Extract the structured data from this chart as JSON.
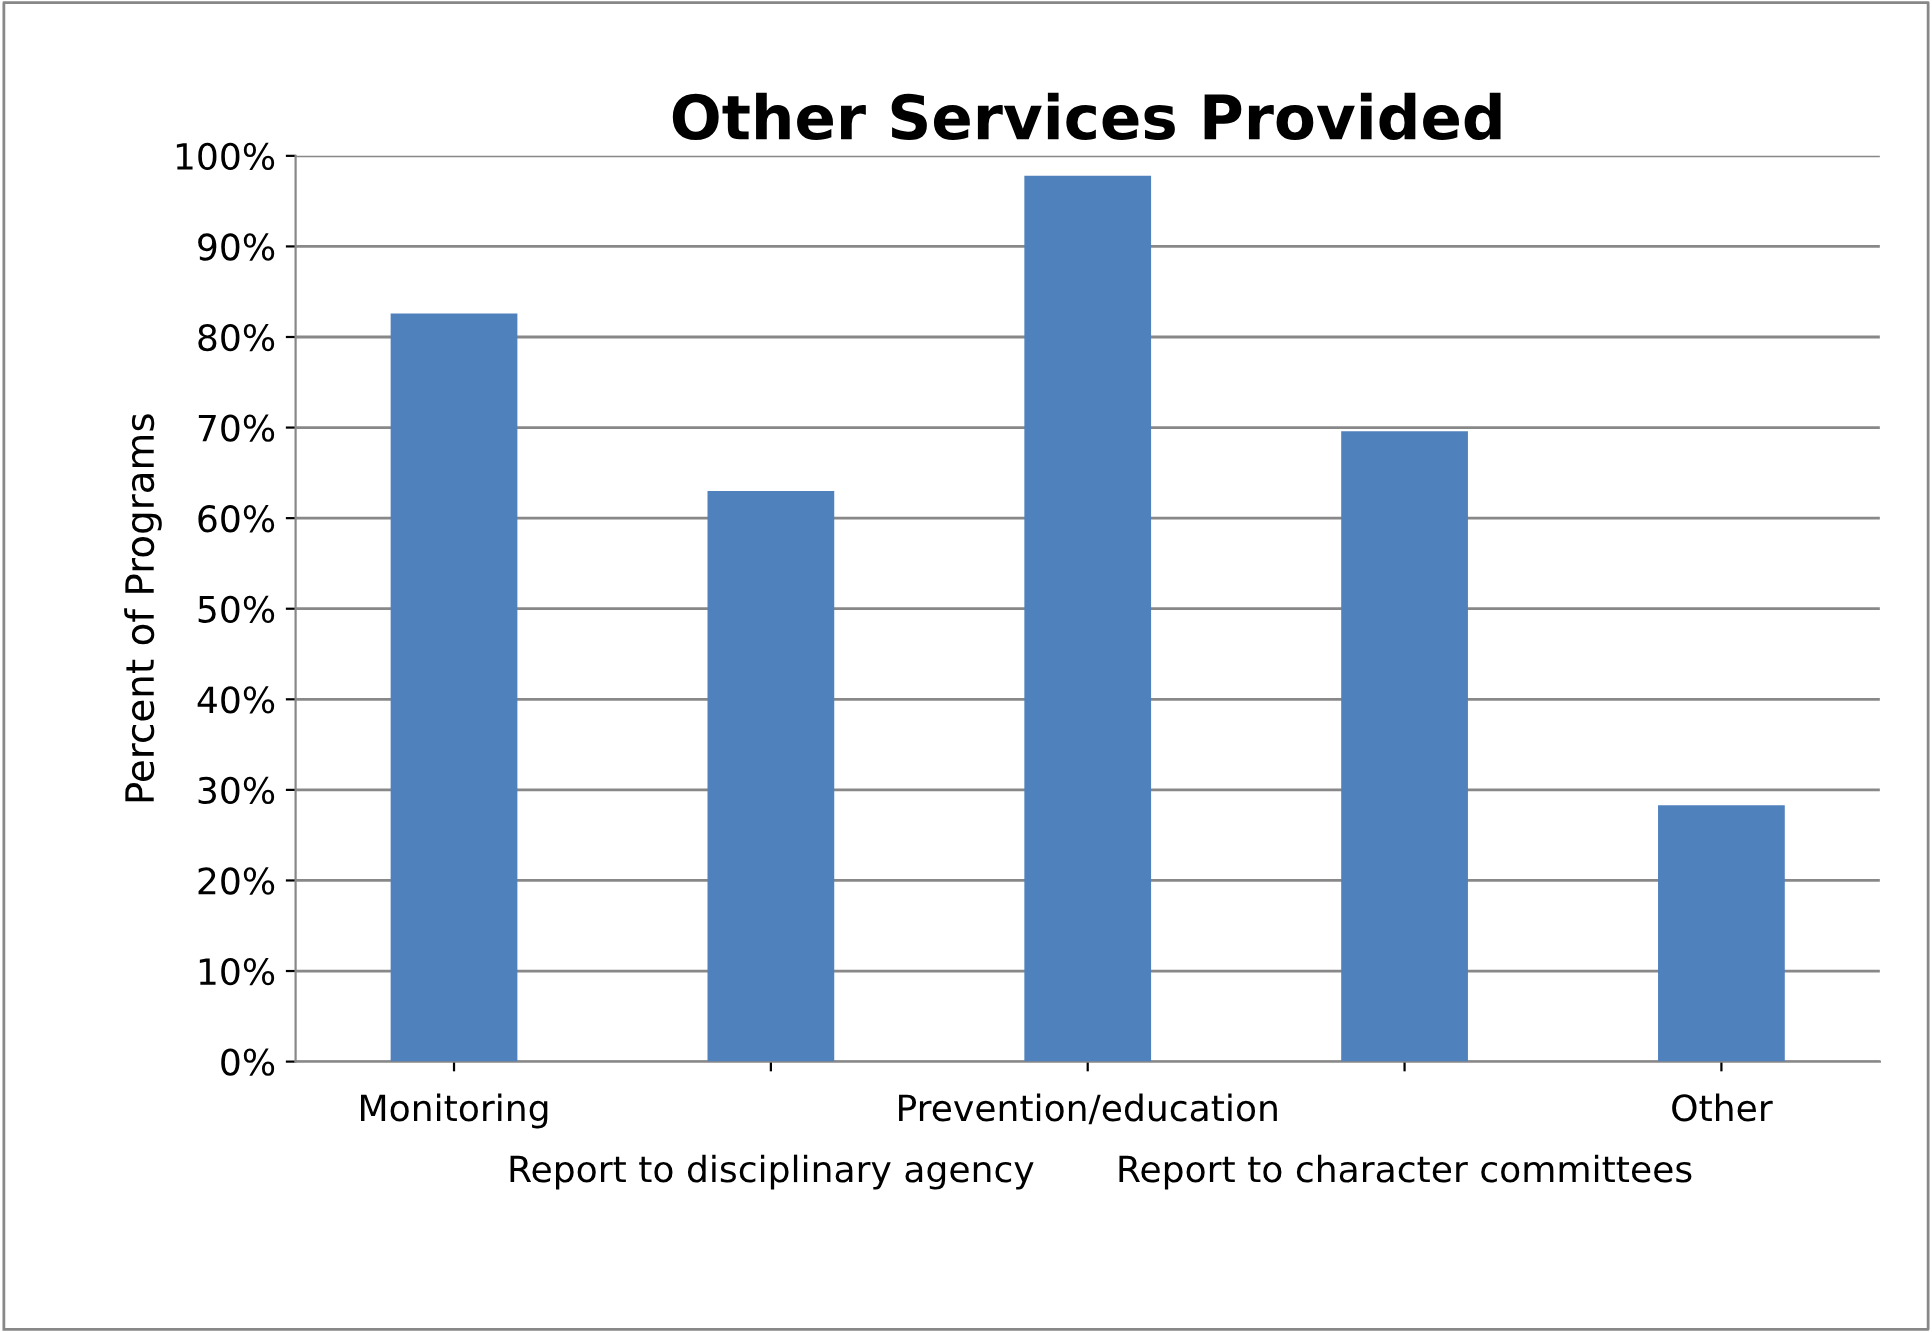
{
  "chart_data": {
    "type": "bar",
    "title": "Other Services Provided",
    "ylabel": "Percent of Programs",
    "categories": [
      "Monitoring",
      "Report to disciplinary agency",
      "Prevention/education",
      "Report to character committees",
      "Other"
    ],
    "values": [
      82.6,
      63,
      97.8,
      69.6,
      28.3
    ],
    "color": "#4f81bd",
    "ylim": [
      0,
      100
    ],
    "yticks": [
      {
        "value": 0,
        "label": "0%"
      },
      {
        "value": 10,
        "label": "10%"
      },
      {
        "value": 20,
        "label": "20%"
      },
      {
        "value": 30,
        "label": "30%"
      },
      {
        "value": 40,
        "label": "40%"
      },
      {
        "value": 50,
        "label": "50%"
      },
      {
        "value": 60,
        "label": "60%"
      },
      {
        "value": 70,
        "label": "70%"
      },
      {
        "value": 80,
        "label": "80%"
      },
      {
        "value": 90,
        "label": "90%"
      },
      {
        "value": 100,
        "label": "100%"
      }
    ],
    "grid": "y",
    "legend": false
  }
}
